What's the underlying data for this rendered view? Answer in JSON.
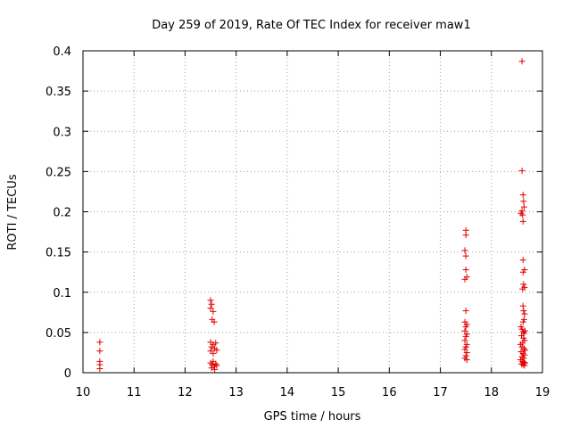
{
  "chart_data": {
    "type": "scatter",
    "title": "Day 259 of 2019, Rate Of TEC Index for receiver maw1",
    "xlabel": "GPS time / hours",
    "ylabel": "ROTI / TECUs",
    "xlim": [
      10,
      19
    ],
    "ylim": [
      0,
      0.4
    ],
    "xticks": [
      10,
      11,
      12,
      13,
      14,
      15,
      16,
      17,
      18,
      19
    ],
    "yticks": [
      0,
      0.05,
      0.1,
      0.15,
      0.2,
      0.25,
      0.3,
      0.35,
      0.4
    ],
    "grid": true,
    "marker": "+",
    "marker_color": "#e00000",
    "series": [
      {
        "name": "maw1",
        "points": [
          [
            10.33,
            0.038
          ],
          [
            10.33,
            0.027
          ],
          [
            10.33,
            0.014
          ],
          [
            10.33,
            0.01
          ],
          [
            10.33,
            0.005
          ],
          [
            12.5,
            0.09
          ],
          [
            12.52,
            0.085
          ],
          [
            12.5,
            0.08
          ],
          [
            12.55,
            0.076
          ],
          [
            12.53,
            0.066
          ],
          [
            12.57,
            0.063
          ],
          [
            12.5,
            0.038
          ],
          [
            12.55,
            0.035
          ],
          [
            12.6,
            0.037
          ],
          [
            12.52,
            0.032
          ],
          [
            12.58,
            0.03
          ],
          [
            12.5,
            0.027
          ],
          [
            12.62,
            0.028
          ],
          [
            12.55,
            0.024
          ],
          [
            12.5,
            0.012
          ],
          [
            12.53,
            0.01
          ],
          [
            12.57,
            0.008
          ],
          [
            12.6,
            0.011
          ],
          [
            12.52,
            0.006
          ],
          [
            12.58,
            0.004
          ],
          [
            12.62,
            0.009
          ],
          [
            12.55,
            0.014
          ],
          [
            17.5,
            0.177
          ],
          [
            17.5,
            0.171
          ],
          [
            17.48,
            0.152
          ],
          [
            17.5,
            0.145
          ],
          [
            17.5,
            0.128
          ],
          [
            17.52,
            0.119
          ],
          [
            17.48,
            0.116
          ],
          [
            17.5,
            0.077
          ],
          [
            17.48,
            0.063
          ],
          [
            17.52,
            0.06
          ],
          [
            17.5,
            0.057
          ],
          [
            17.48,
            0.052
          ],
          [
            17.52,
            0.048
          ],
          [
            17.5,
            0.045
          ],
          [
            17.48,
            0.04
          ],
          [
            17.52,
            0.035
          ],
          [
            17.5,
            0.032
          ],
          [
            17.48,
            0.029
          ],
          [
            17.52,
            0.025
          ],
          [
            17.5,
            0.021
          ],
          [
            17.48,
            0.018
          ],
          [
            17.52,
            0.016
          ],
          [
            18.6,
            0.387
          ],
          [
            18.6,
            0.251
          ],
          [
            18.62,
            0.221
          ],
          [
            18.63,
            0.213
          ],
          [
            18.64,
            0.206
          ],
          [
            18.6,
            0.201
          ],
          [
            18.58,
            0.198
          ],
          [
            18.61,
            0.196
          ],
          [
            18.62,
            0.188
          ],
          [
            18.62,
            0.14
          ],
          [
            18.65,
            0.128
          ],
          [
            18.62,
            0.125
          ],
          [
            18.63,
            0.11
          ],
          [
            18.65,
            0.106
          ],
          [
            18.61,
            0.104
          ],
          [
            18.62,
            0.083
          ],
          [
            18.63,
            0.077
          ],
          [
            18.65,
            0.073
          ],
          [
            18.64,
            0.066
          ],
          [
            18.62,
            0.063
          ],
          [
            18.58,
            0.057
          ],
          [
            18.6,
            0.054
          ],
          [
            18.62,
            0.051
          ],
          [
            18.64,
            0.049
          ],
          [
            18.66,
            0.052
          ],
          [
            18.59,
            0.046
          ],
          [
            18.63,
            0.043
          ],
          [
            18.65,
            0.04
          ],
          [
            18.61,
            0.037
          ],
          [
            18.57,
            0.035
          ],
          [
            18.6,
            0.032
          ],
          [
            18.64,
            0.03
          ],
          [
            18.66,
            0.028
          ],
          [
            18.58,
            0.026
          ],
          [
            18.62,
            0.024
          ],
          [
            18.65,
            0.022
          ],
          [
            18.6,
            0.02
          ],
          [
            18.63,
            0.018
          ],
          [
            18.57,
            0.016
          ],
          [
            18.61,
            0.014
          ],
          [
            18.64,
            0.013
          ],
          [
            18.66,
            0.012
          ],
          [
            18.59,
            0.011
          ],
          [
            18.62,
            0.01
          ],
          [
            18.65,
            0.009
          ]
        ]
      }
    ]
  }
}
